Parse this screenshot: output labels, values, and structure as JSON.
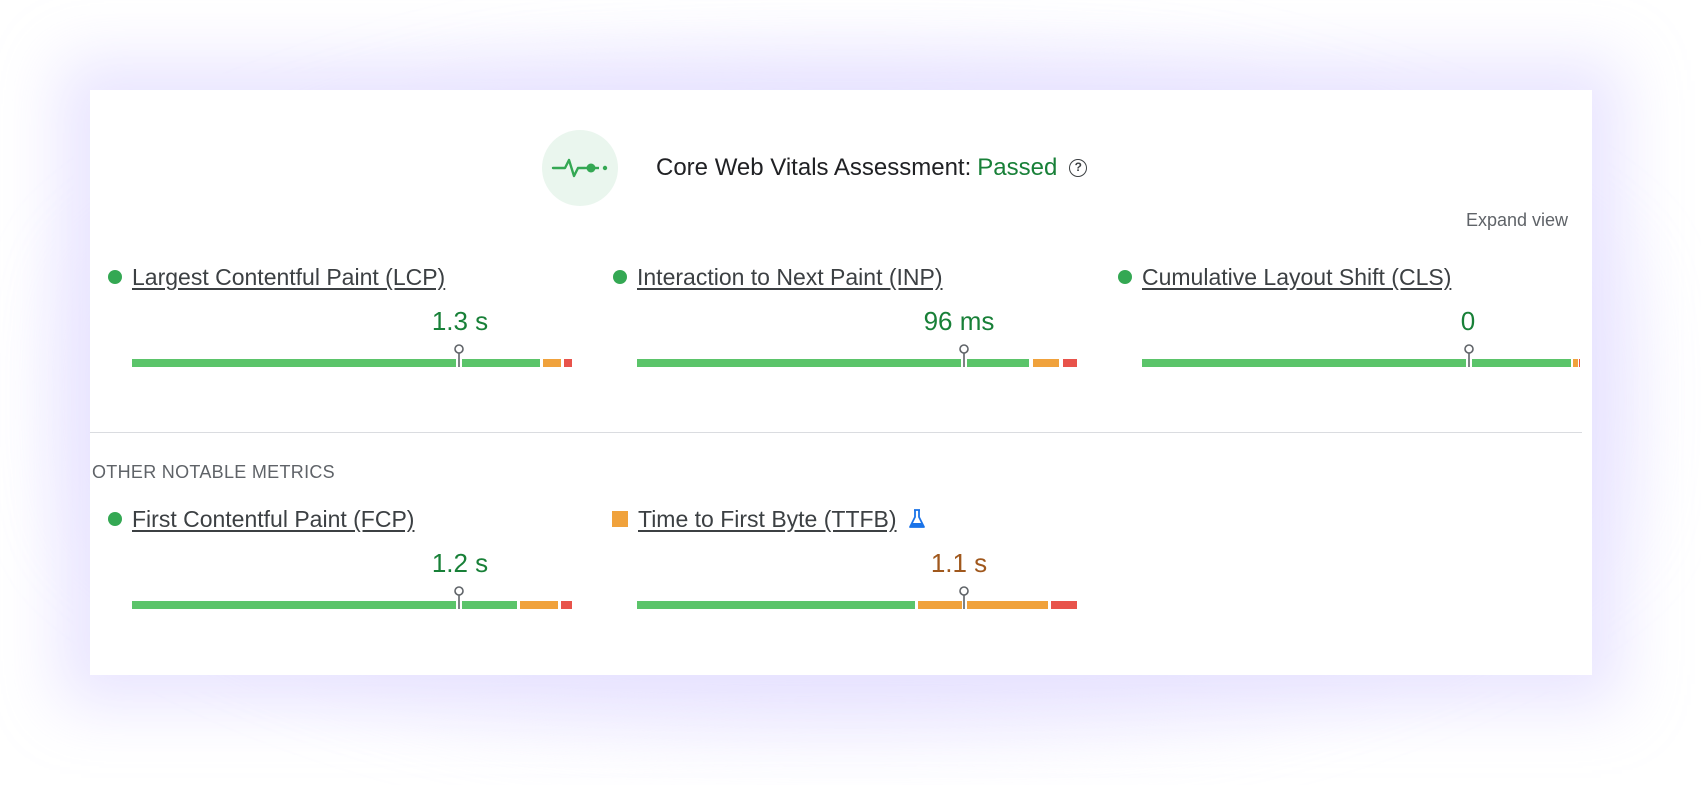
{
  "header": {
    "title": "Core Web Vitals Assessment:",
    "status": "Passed",
    "status_color": "#188038",
    "badge_icon": "pulse-icon",
    "help_icon": "help-icon",
    "help_glyph": "?"
  },
  "expand_label": "Expand view",
  "core_metrics": [
    {
      "name": "Largest Contentful Paint (LCP)",
      "value": "1.3 s",
      "status": "good",
      "status_icon": "green-dot"
    },
    {
      "name": "Interaction to Next Paint (INP)",
      "value": "96 ms",
      "status": "good",
      "status_icon": "green-dot"
    },
    {
      "name": "Cumulative Layout Shift (CLS)",
      "value": "0",
      "status": "good",
      "status_icon": "green-dot"
    }
  ],
  "other_section_label": "OTHER NOTABLE METRICS",
  "other_metrics": [
    {
      "name": "First Contentful Paint (FCP)",
      "value": "1.2 s",
      "status": "good",
      "status_icon": "green-dot"
    },
    {
      "name": "Time to First Byte (TTFB)",
      "value": "1.1 s",
      "status": "needs-improvement",
      "status_icon": "orange-square",
      "extra_icon": "flask-icon"
    }
  ],
  "colors": {
    "good": "#5bc46a",
    "needs_improvement": "#f0a23c",
    "poor": "#e8534b",
    "good_text": "#188038",
    "needs_improvement_text": "#a0581d"
  }
}
